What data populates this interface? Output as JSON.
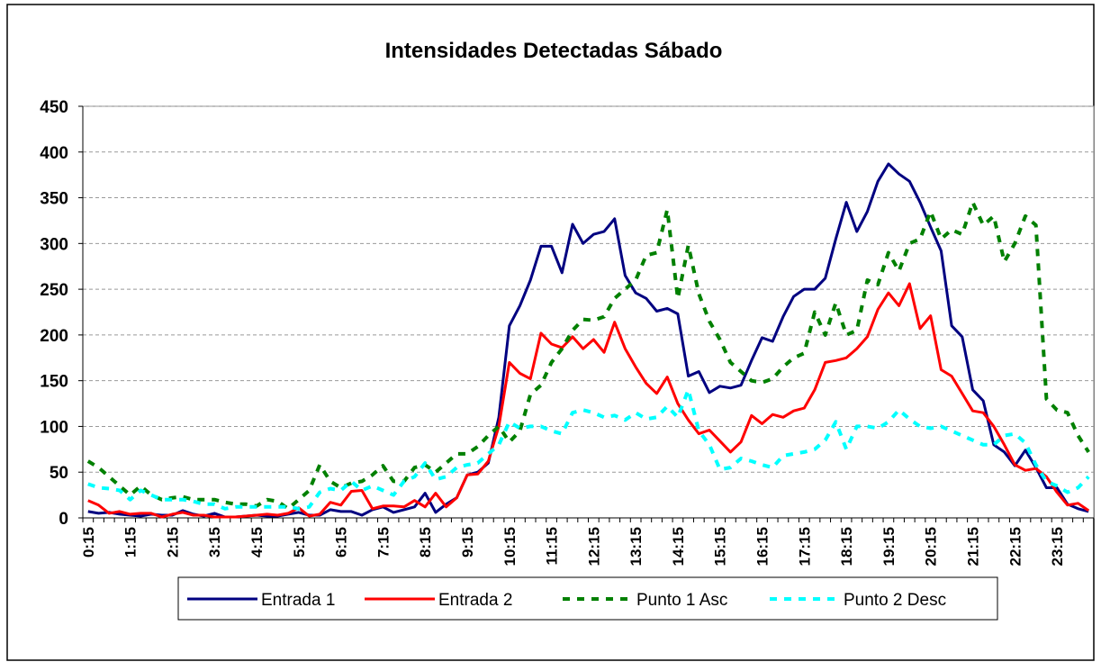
{
  "chart_data": {
    "type": "line",
    "title": "Intensidades Detectadas Sábado",
    "categories": [
      "0:15",
      null,
      null,
      null,
      "1:15",
      null,
      null,
      null,
      "2:15",
      null,
      null,
      null,
      "3:15",
      null,
      null,
      null,
      "4:15",
      null,
      null,
      null,
      "5:15",
      null,
      null,
      null,
      "6:15",
      null,
      null,
      null,
      "7:15",
      null,
      null,
      null,
      "8:15",
      null,
      null,
      null,
      "9:15",
      null,
      null,
      null,
      "10:15",
      null,
      null,
      null,
      "11:15",
      null,
      null,
      null,
      "12:15",
      null,
      null,
      null,
      "13:15",
      null,
      null,
      null,
      "14:15",
      null,
      null,
      null,
      "15:15",
      null,
      null,
      null,
      "16:15",
      null,
      null,
      null,
      "17:15",
      null,
      null,
      null,
      "18:15",
      null,
      null,
      null,
      "19:15",
      null,
      null,
      null,
      "20:15",
      null,
      null,
      null,
      "21:15",
      null,
      null,
      null,
      "22:15",
      null,
      null,
      null,
      "23:15",
      null,
      null,
      null
    ],
    "series": [
      {
        "name": "Entrada 1",
        "color": "#000080",
        "dash": false,
        "values": [
          7,
          5,
          6,
          4,
          3,
          2,
          4,
          3,
          3,
          8,
          4,
          2,
          5,
          1,
          1,
          2,
          3,
          2,
          2,
          4,
          6,
          3,
          3,
          9,
          7,
          7,
          3,
          9,
          12,
          6,
          9,
          12,
          27,
          6,
          15,
          22,
          47,
          50,
          60,
          110,
          210,
          232,
          260,
          297,
          297,
          268,
          321,
          300,
          310,
          313,
          327,
          265,
          246,
          240,
          226,
          229,
          223,
          155,
          160,
          137,
          144,
          142,
          145,
          172,
          197,
          193,
          220,
          242,
          250,
          250,
          262,
          305,
          345,
          313,
          335,
          368,
          387,
          376,
          368,
          345,
          318,
          292,
          210,
          198,
          140,
          128,
          80,
          72,
          57,
          74,
          55,
          33,
          33,
          15,
          10,
          7
        ]
      },
      {
        "name": "Entrada 2",
        "color": "#ff0000",
        "dash": false,
        "values": [
          19,
          14,
          5,
          7,
          4,
          5,
          5,
          1,
          4,
          6,
          3,
          3,
          1,
          1,
          1,
          2,
          3,
          4,
          3,
          5,
          11,
          2,
          4,
          17,
          14,
          29,
          30,
          10,
          13,
          13,
          12,
          19,
          12,
          27,
          12,
          22,
          47,
          48,
          62,
          100,
          170,
          158,
          152,
          202,
          190,
          186,
          198,
          185,
          195,
          181,
          214,
          185,
          165,
          147,
          136,
          154,
          125,
          107,
          92,
          96,
          84,
          72,
          83,
          112,
          103,
          113,
          110,
          117,
          120,
          140,
          170,
          172,
          175,
          185,
          198,
          228,
          246,
          232,
          256,
          207,
          221,
          162,
          155,
          136,
          117,
          115,
          100,
          80,
          58,
          52,
          54,
          45,
          28,
          14,
          16,
          8
        ]
      },
      {
        "name": "Punto 1 Asc",
        "color": "#008000",
        "dash": true,
        "values": [
          62,
          55,
          45,
          35,
          25,
          35,
          25,
          20,
          22,
          23,
          20,
          20,
          20,
          17,
          15,
          15,
          13,
          20,
          18,
          10,
          20,
          30,
          58,
          40,
          33,
          38,
          40,
          47,
          57,
          40,
          40,
          55,
          58,
          50,
          60,
          70,
          70,
          78,
          90,
          100,
          83,
          95,
          135,
          145,
          170,
          185,
          205,
          217,
          216,
          220,
          240,
          250,
          260,
          287,
          290,
          337,
          240,
          298,
          245,
          215,
          195,
          170,
          160,
          150,
          148,
          152,
          165,
          175,
          180,
          225,
          200,
          235,
          200,
          205,
          260,
          255,
          290,
          270,
          300,
          305,
          335,
          305,
          315,
          310,
          345,
          320,
          330,
          280,
          300,
          330,
          320,
          130,
          118,
          115,
          90,
          72
        ]
      },
      {
        "name": "Punto 2 Desc",
        "color": "#00ffff",
        "dash": true,
        "values": [
          37,
          33,
          32,
          30,
          20,
          30,
          25,
          20,
          20,
          20,
          18,
          15,
          15,
          10,
          12,
          12,
          12,
          12,
          12,
          12,
          10,
          12,
          28,
          32,
          30,
          40,
          30,
          35,
          30,
          25,
          40,
          45,
          60,
          42,
          45,
          55,
          58,
          60,
          70,
          80,
          105,
          98,
          100,
          100,
          95,
          92,
          115,
          118,
          115,
          110,
          112,
          107,
          115,
          108,
          110,
          122,
          110,
          140,
          95,
          80,
          53,
          55,
          65,
          62,
          58,
          55,
          68,
          70,
          72,
          75,
          85,
          105,
          75,
          100,
          100,
          98,
          105,
          118,
          108,
          100,
          98,
          100,
          95,
          90,
          85,
          80,
          80,
          90,
          92,
          82,
          58,
          40,
          35,
          28,
          33,
          45
        ]
      }
    ],
    "ylim": [
      0,
      450
    ],
    "yticks": [
      0,
      50,
      100,
      150,
      200,
      250,
      300,
      350,
      400,
      450
    ],
    "grid": true,
    "legend": "bottom"
  }
}
